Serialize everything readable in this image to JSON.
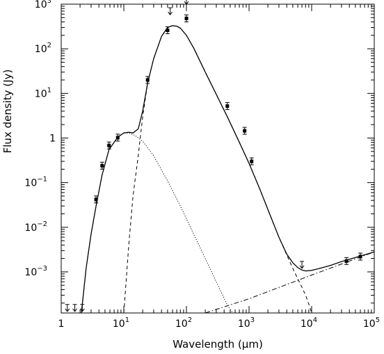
{
  "chart_data": {
    "type": "scatter",
    "title": "",
    "xlabel": "Wavelength",
    "xlabel_unit": "(μm)",
    "ylabel": "Flux density (Jy)",
    "xscale": "log",
    "yscale": "log",
    "xlim": [
      1,
      100000
    ],
    "ylim": [
      0.00012,
      1000
    ],
    "x_ticks": [
      {
        "base": "1",
        "exp": ""
      },
      {
        "base": "10",
        "exp": "1"
      },
      {
        "base": "10",
        "exp": "2"
      },
      {
        "base": "10",
        "exp": "3"
      },
      {
        "base": "10",
        "exp": "4"
      },
      {
        "base": "10",
        "exp": "5"
      }
    ],
    "y_ticks": [
      {
        "base": "10",
        "exp": "−3"
      },
      {
        "base": "10",
        "exp": "−2"
      },
      {
        "base": "10",
        "exp": "−1"
      },
      {
        "base": "1",
        "exp": ""
      },
      {
        "base": "10",
        "exp": "1"
      },
      {
        "base": "10",
        "exp": "2"
      },
      {
        "base": "10",
        "exp": "3"
      }
    ],
    "grid": false,
    "legend": "none",
    "detections": [
      {
        "x": 3.6,
        "y": 0.042
      },
      {
        "x": 4.5,
        "y": 0.24
      },
      {
        "x": 5.8,
        "y": 0.68
      },
      {
        "x": 8.0,
        "y": 1.02
      },
      {
        "x": 24,
        "y": 20
      },
      {
        "x": 850,
        "y": 1.45
      },
      {
        "x": 1100,
        "y": 0.3
      },
      {
        "x": 450,
        "y": 5.2
      },
      {
        "x": 36000,
        "y": 0.00175
      },
      {
        "x": 60000,
        "y": 0.0022
      },
      {
        "x": 50,
        "y": 260
      },
      {
        "x": 100,
        "y": 480
      }
    ],
    "upper_limits": [
      {
        "x": 1.25,
        "y": 0.00013
      },
      {
        "x": 1.65,
        "y": 0.00013
      },
      {
        "x": 2.17,
        "y": 0.00013
      },
      {
        "x": 7000,
        "y": 0.0012
      },
      {
        "x": 55,
        "y": 580
      },
      {
        "x": 100,
        "y": 1000
      }
    ],
    "series": [
      {
        "style": "solid",
        "x": [
          2.1,
          2.5,
          3,
          3.6,
          4.5,
          5.8,
          8,
          10,
          12,
          14,
          17,
          20,
          24,
          30,
          40,
          50,
          60,
          70,
          80,
          100,
          130,
          200,
          300,
          450,
          700,
          1000,
          1500,
          2000,
          3000,
          4000,
          5000,
          6000,
          7000,
          8000,
          10000,
          13000,
          20000,
          30000,
          50000,
          100000
        ],
        "y": [
          0.00012,
          0.0012,
          0.007,
          0.03,
          0.15,
          0.55,
          1.05,
          1.3,
          1.35,
          1.3,
          1.6,
          4,
          17,
          60,
          190,
          300,
          330,
          320,
          290,
          200,
          105,
          30,
          9.5,
          3,
          0.8,
          0.27,
          0.07,
          0.025,
          0.006,
          0.0025,
          0.0016,
          0.00125,
          0.0011,
          0.00105,
          0.00108,
          0.00118,
          0.0014,
          0.0017,
          0.0021,
          0.0028
        ]
      },
      {
        "style": "dotted",
        "x": [
          2.1,
          2.5,
          3,
          3.6,
          4.5,
          5.8,
          8,
          10,
          12,
          15,
          20,
          30,
          50,
          80,
          120,
          200,
          300,
          450,
          550
        ],
        "y": [
          0.00012,
          0.0012,
          0.007,
          0.03,
          0.15,
          0.55,
          1.05,
          1.3,
          1.3,
          1.15,
          0.85,
          0.4,
          0.11,
          0.03,
          0.009,
          0.002,
          0.0006,
          0.00018,
          0.00012
        ]
      },
      {
        "style": "dashed",
        "x": [
          10,
          12,
          14,
          17,
          20,
          24,
          30,
          40,
          50,
          60,
          70,
          80,
          100,
          130,
          200,
          300,
          450,
          700,
          1000,
          1500,
          2000,
          3000,
          4000,
          5000,
          6000,
          7000,
          8000,
          9000,
          10000
        ],
        "y": [
          0.00012,
          0.004,
          0.05,
          0.4,
          3,
          17,
          60,
          190,
          300,
          330,
          320,
          290,
          200,
          105,
          30,
          9.5,
          3,
          0.8,
          0.27,
          0.07,
          0.025,
          0.006,
          0.0024,
          0.0012,
          0.0007,
          0.00045,
          0.0003,
          0.00019,
          0.00012
        ]
      },
      {
        "style": "dashdot",
        "x": [
          200,
          1000,
          10000,
          100000
        ],
        "y": [
          0.00012,
          0.00025,
          0.00085,
          0.0028
        ]
      }
    ]
  }
}
